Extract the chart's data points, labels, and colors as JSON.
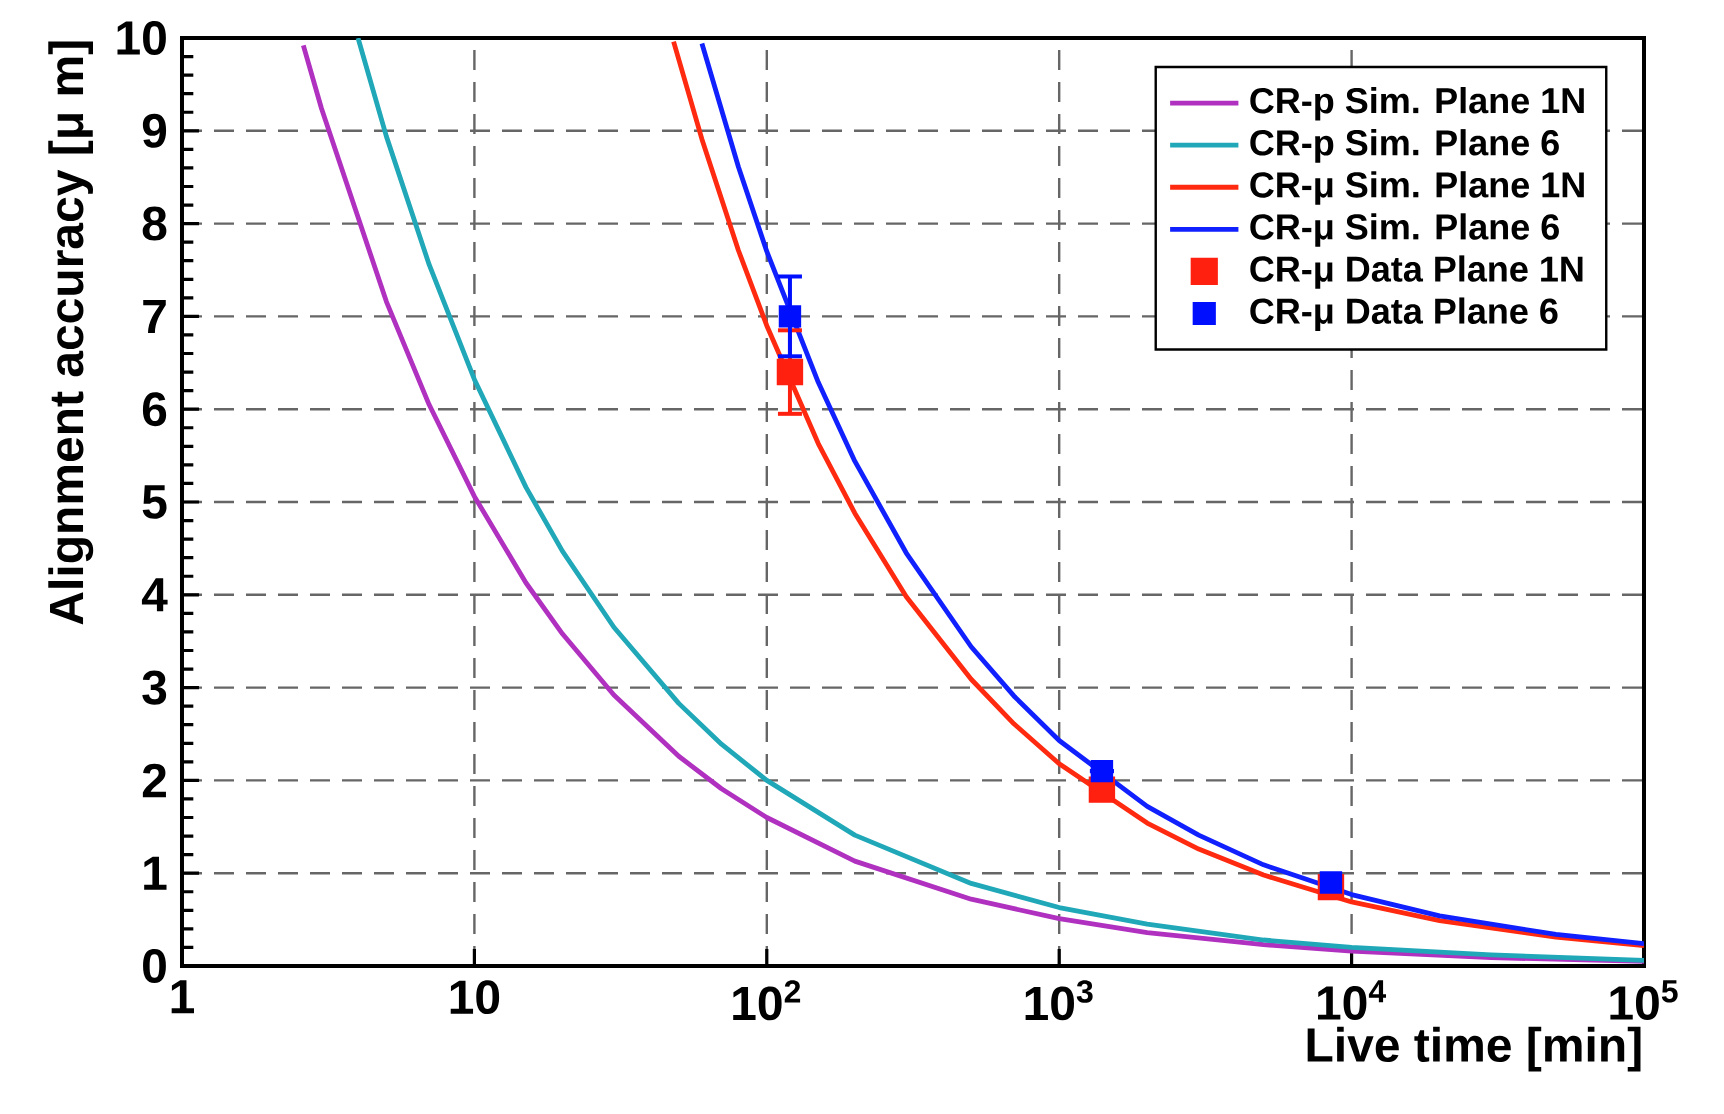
{
  "chart_data": {
    "type": "line",
    "xlabel": "Live time [min]",
    "ylabel": "Alignment accuracy [μ m]",
    "log": "x",
    "grid": true,
    "legend": "top right",
    "xlim": [
      1,
      100000
    ],
    "ylim": [
      0,
      10
    ],
    "xticks": [
      {
        "value": 1,
        "label": "1"
      },
      {
        "value": 10,
        "label": "10"
      },
      {
        "value": 100,
        "label": "10$^{2}$"
      },
      {
        "value": 1000,
        "label": "10$^{3}$"
      },
      {
        "value": 10000,
        "label": "10$^{4}$"
      },
      {
        "value": 100000,
        "label": "10$^{5}$"
      }
    ],
    "yticks": [
      0,
      1,
      2,
      3,
      4,
      5,
      6,
      7,
      8,
      9,
      10
    ],
    "series": [
      {
        "name": "CR-p Sim. Plane 1N",
        "color": "#b030c0",
        "marker": "none",
        "line_style": "solid",
        "x": [
          2.6,
          3,
          5,
          7,
          10,
          15,
          20,
          30,
          50,
          70,
          100,
          200,
          500,
          1000,
          2000,
          5000,
          10000,
          30000,
          100000
        ],
        "values": [
          9.92,
          9.24,
          7.16,
          6.05,
          5.06,
          4.13,
          3.58,
          2.92,
          2.26,
          1.91,
          1.6,
          1.13,
          0.72,
          0.51,
          0.36,
          0.23,
          0.16,
          0.09,
          0.05
        ]
      },
      {
        "name": "CR-p Sim. Plane 6",
        "color": "#20a8b8",
        "marker": "none",
        "line_style": "solid",
        "x": [
          4,
          5,
          7,
          10,
          15,
          20,
          30,
          50,
          70,
          100,
          200,
          500,
          1000,
          2000,
          5000,
          10000,
          30000,
          100000
        ],
        "values": [
          10,
          8.94,
          7.56,
          6.32,
          5.16,
          4.47,
          3.65,
          2.83,
          2.39,
          2.0,
          1.41,
          0.89,
          0.63,
          0.45,
          0.28,
          0.2,
          0.12,
          0.06
        ]
      },
      {
        "name": "CR-μ Sim. Plane 1N",
        "color": "#ff2a10",
        "marker": "none",
        "line_style": "solid",
        "x": [
          48,
          60,
          80,
          100,
          150,
          200,
          300,
          500,
          700,
          1000,
          2000,
          3000,
          5000,
          10000,
          20000,
          50000,
          100000
        ],
        "values": [
          9.96,
          8.91,
          7.71,
          6.9,
          5.63,
          4.88,
          3.98,
          3.09,
          2.61,
          2.18,
          1.54,
          1.26,
          0.98,
          0.69,
          0.49,
          0.31,
          0.22
        ]
      },
      {
        "name": "CR-μ Sim. Plane 6",
        "color": "#1020ff",
        "marker": "none",
        "line_style": "solid",
        "x": [
          60,
          80,
          100,
          150,
          200,
          300,
          500,
          700,
          1000,
          2000,
          3000,
          5000,
          10000,
          20000,
          50000,
          100000
        ],
        "values": [
          9.94,
          8.61,
          7.7,
          6.29,
          5.44,
          4.45,
          3.44,
          2.91,
          2.43,
          1.72,
          1.41,
          1.09,
          0.77,
          0.54,
          0.34,
          0.24
        ]
      },
      {
        "name": "CR-μ Data Plane 1N",
        "color": "#ff2010",
        "type": "scatter",
        "marker": "square",
        "x": [
          120,
          1400,
          8500
        ],
        "values": [
          6.4,
          1.9,
          0.85
        ],
        "errors": [
          0.45,
          null,
          null
        ]
      },
      {
        "name": "CR-μ Data Plane 6",
        "color": "#0010ff",
        "type": "scatter",
        "marker": "square",
        "x": [
          120,
          1400,
          8500
        ],
        "values": [
          7.0,
          2.1,
          0.9
        ],
        "errors": [
          0.43,
          null,
          null
        ]
      }
    ]
  }
}
